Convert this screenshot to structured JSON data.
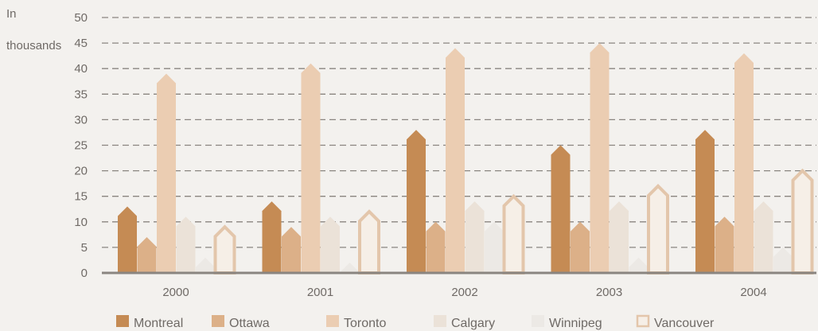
{
  "chart_data": {
    "type": "bar",
    "title": "",
    "xlabel": "",
    "ylabel": "In thousands",
    "ylabel_lines": [
      "In",
      "thousands"
    ],
    "ylim": [
      0,
      50
    ],
    "yticks": [
      0,
      5,
      10,
      15,
      20,
      25,
      30,
      35,
      40,
      45,
      50
    ],
    "grid": true,
    "legend_position": "bottom",
    "categories": [
      "2000",
      "2001",
      "2002",
      "2003",
      "2004"
    ],
    "series": [
      {
        "name": "Montreal",
        "color": "#c58b54",
        "style": "solid",
        "values": [
          13,
          14,
          28,
          25,
          28
        ]
      },
      {
        "name": "Ottawa",
        "color": "#dcb088",
        "style": "solid",
        "values": [
          7,
          9,
          10,
          10,
          11
        ]
      },
      {
        "name": "Toronto",
        "color": "#ebcdb2",
        "style": "solid",
        "values": [
          39,
          41,
          44,
          45,
          43
        ]
      },
      {
        "name": "Calgary",
        "color": "#ebe2d8",
        "style": "solid",
        "values": [
          11,
          11,
          14,
          14,
          14
        ]
      },
      {
        "name": "Winnipeg",
        "color": "#ece9e5",
        "style": "solid",
        "values": [
          3,
          2,
          10,
          3,
          5
        ]
      },
      {
        "name": "Vancouver",
        "color": "#e3c6ab",
        "style": "outline",
        "values": [
          9,
          12,
          15,
          17,
          20
        ]
      }
    ]
  }
}
